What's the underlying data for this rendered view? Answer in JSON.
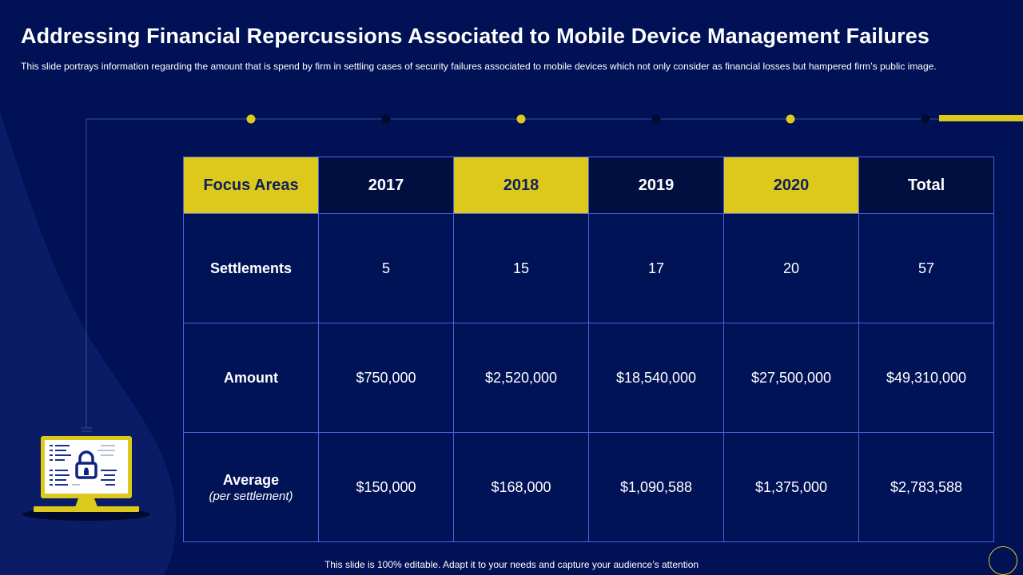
{
  "title": "Addressing Financial Repercussions Associated to Mobile Device Management Failures",
  "subtitle": "This slide portrays information regarding the amount that is spend by firm in settling cases of security failures associated to mobile devices which not only consider as financial losses but hampered firm’s public image.",
  "colors": {
    "background": "#001155",
    "accent": "#ddc91c",
    "header_dark": "#000f3f",
    "border": "#4a63e0"
  },
  "table": {
    "headers": [
      "Focus Areas",
      "2017",
      "2018",
      "2019",
      "2020",
      "Total"
    ],
    "rows": [
      {
        "label": "Settlements",
        "sublabel": "",
        "values": [
          "5",
          "15",
          "17",
          "20",
          "57"
        ]
      },
      {
        "label": "Amount",
        "sublabel": "",
        "values": [
          "$750,000",
          "$2,520,000",
          "$18,540,000",
          "$27,500,000",
          "$49,310,000"
        ]
      },
      {
        "label": "Average",
        "sublabel": "(per settlement)",
        "values": [
          "$150,000",
          "$168,000",
          "$1,090,588",
          "$1,375,000",
          "$2,783,588"
        ]
      }
    ]
  },
  "icons": {
    "illustration": "laptop-lock-icon",
    "decoration": "circle-outline-icon"
  },
  "footer": "This slide is 100% editable. Adapt it to your needs and capture your audience’s attention"
}
